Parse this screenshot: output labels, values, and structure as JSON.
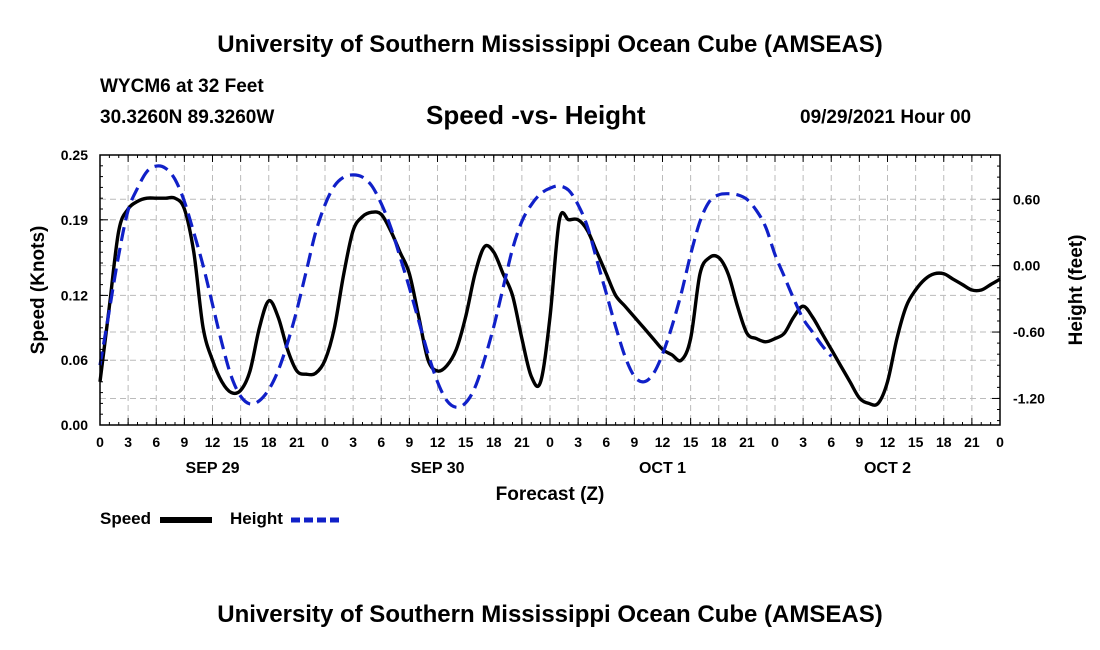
{
  "header": {
    "title": "University of Southern Mississippi Ocean Cube (AMSEAS)",
    "station": "WYCM6 at 32 Feet",
    "coords": "30.3260N  89.3260W",
    "subtitle": "Speed -vs- Height",
    "datetime": "09/29/2021 Hour 00"
  },
  "footer": {
    "title": "University of Southern Mississippi Ocean Cube (AMSEAS)"
  },
  "legend": {
    "speed_label": "Speed",
    "height_label": "Height"
  },
  "colors": {
    "speed": "#000000",
    "height": "#1020c8",
    "grid": "#bbbbbb"
  },
  "chart_data": {
    "type": "line",
    "xlabel": "Forecast (Z)",
    "ylabel": "Speed (Knots)",
    "y2label": "Height (feet)",
    "xlim": [
      0,
      96
    ],
    "ylim": [
      0,
      0.25
    ],
    "y2lim": [
      -1.44,
      1.0
    ],
    "yticks": [
      0.0,
      0.06,
      0.12,
      0.19,
      0.25
    ],
    "ytick_labels": [
      "0.00",
      "0.06",
      "0.12",
      "0.19",
      "0.25"
    ],
    "y2ticks": [
      -1.2,
      -0.6,
      0.0,
      0.6
    ],
    "y2tick_labels": [
      "-1.20",
      "-0.60",
      "0.00",
      "0.60"
    ],
    "xtick_labels": [
      "0",
      "3",
      "6",
      "9",
      "12",
      "15",
      "18",
      "21",
      "0",
      "3",
      "6",
      "9",
      "12",
      "15",
      "18",
      "21",
      "0",
      "3",
      "6",
      "9",
      "12",
      "15",
      "18",
      "21",
      "0",
      "3",
      "6",
      "9",
      "12",
      "15",
      "18",
      "21",
      "0"
    ],
    "day_labels": [
      {
        "hour": 12,
        "label": "SEP 29"
      },
      {
        "hour": 36,
        "label": "SEP 30"
      },
      {
        "hour": 60,
        "label": "OCT 1"
      },
      {
        "hour": 84,
        "label": "OCT 2"
      }
    ],
    "series": [
      {
        "name": "Speed",
        "axis": "left",
        "style": "solid",
        "points": [
          [
            0,
            0.04
          ],
          [
            1,
            0.11
          ],
          [
            2,
            0.18
          ],
          [
            3,
            0.2
          ],
          [
            4,
            0.207
          ],
          [
            5,
            0.21
          ],
          [
            6,
            0.21
          ],
          [
            7,
            0.21
          ],
          [
            8,
            0.21
          ],
          [
            9,
            0.2
          ],
          [
            10,
            0.16
          ],
          [
            11,
            0.09
          ],
          [
            12,
            0.06
          ],
          [
            13,
            0.04
          ],
          [
            14,
            0.03
          ],
          [
            15,
            0.032
          ],
          [
            16,
            0.05
          ],
          [
            17,
            0.09
          ],
          [
            18,
            0.115
          ],
          [
            19,
            0.1
          ],
          [
            20,
            0.07
          ],
          [
            21,
            0.05
          ],
          [
            22,
            0.047
          ],
          [
            23,
            0.048
          ],
          [
            24,
            0.06
          ],
          [
            25,
            0.09
          ],
          [
            26,
            0.14
          ],
          [
            27,
            0.18
          ],
          [
            28,
            0.193
          ],
          [
            29,
            0.197
          ],
          [
            30,
            0.195
          ],
          [
            31,
            0.18
          ],
          [
            32,
            0.16
          ],
          [
            33,
            0.14
          ],
          [
            34,
            0.1
          ],
          [
            35,
            0.06
          ],
          [
            36,
            0.05
          ],
          [
            37,
            0.055
          ],
          [
            38,
            0.07
          ],
          [
            39,
            0.1
          ],
          [
            40,
            0.14
          ],
          [
            41,
            0.165
          ],
          [
            42,
            0.16
          ],
          [
            43,
            0.14
          ],
          [
            44,
            0.12
          ],
          [
            45,
            0.08
          ],
          [
            46,
            0.045
          ],
          [
            47,
            0.04
          ],
          [
            48,
            0.1
          ],
          [
            49,
            0.19
          ],
          [
            50,
            0.19
          ],
          [
            51,
            0.19
          ],
          [
            52,
            0.18
          ],
          [
            53,
            0.16
          ],
          [
            54,
            0.14
          ],
          [
            55,
            0.12
          ],
          [
            56,
            0.11
          ],
          [
            57,
            0.1
          ],
          [
            58,
            0.09
          ],
          [
            59,
            0.08
          ],
          [
            60,
            0.07
          ],
          [
            61,
            0.065
          ],
          [
            62,
            0.06
          ],
          [
            63,
            0.08
          ],
          [
            64,
            0.14
          ],
          [
            65,
            0.155
          ],
          [
            66,
            0.155
          ],
          [
            67,
            0.14
          ],
          [
            68,
            0.11
          ],
          [
            69,
            0.085
          ],
          [
            70,
            0.08
          ],
          [
            71,
            0.077
          ],
          [
            72,
            0.08
          ],
          [
            73,
            0.085
          ],
          [
            74,
            0.1
          ],
          [
            75,
            0.11
          ],
          [
            76,
            0.1
          ],
          [
            77,
            0.085
          ],
          [
            78,
            0.07
          ],
          [
            79,
            0.055
          ],
          [
            80,
            0.04
          ],
          [
            81,
            0.025
          ],
          [
            82,
            0.02
          ],
          [
            83,
            0.02
          ],
          [
            84,
            0.04
          ],
          [
            85,
            0.08
          ],
          [
            86,
            0.11
          ],
          [
            87,
            0.125
          ],
          [
            88,
            0.135
          ],
          [
            89,
            0.14
          ],
          [
            90,
            0.14
          ],
          [
            91,
            0.135
          ],
          [
            92,
            0.13
          ],
          [
            93,
            0.125
          ],
          [
            94,
            0.125
          ],
          [
            95,
            0.13
          ],
          [
            96,
            0.135
          ]
        ]
      },
      {
        "name": "Height",
        "axis": "right",
        "style": "dashed",
        "points": [
          [
            0,
            -0.9
          ],
          [
            1,
            -0.4
          ],
          [
            2,
            0.1
          ],
          [
            3,
            0.5
          ],
          [
            4,
            0.7
          ],
          [
            5,
            0.85
          ],
          [
            6,
            0.9
          ],
          [
            7,
            0.88
          ],
          [
            8,
            0.78
          ],
          [
            9,
            0.58
          ],
          [
            10,
            0.3
          ],
          [
            11,
            0.0
          ],
          [
            12,
            -0.35
          ],
          [
            13,
            -0.7
          ],
          [
            14,
            -1.0
          ],
          [
            15,
            -1.18
          ],
          [
            16,
            -1.25
          ],
          [
            17,
            -1.22
          ],
          [
            18,
            -1.12
          ],
          [
            19,
            -0.95
          ],
          [
            20,
            -0.7
          ],
          [
            21,
            -0.4
          ],
          [
            22,
            -0.05
          ],
          [
            23,
            0.3
          ],
          [
            24,
            0.55
          ],
          [
            25,
            0.72
          ],
          [
            26,
            0.8
          ],
          [
            27,
            0.82
          ],
          [
            28,
            0.8
          ],
          [
            29,
            0.72
          ],
          [
            30,
            0.56
          ],
          [
            31,
            0.35
          ],
          [
            32,
            0.08
          ],
          [
            33,
            -0.2
          ],
          [
            34,
            -0.5
          ],
          [
            35,
            -0.8
          ],
          [
            36,
            -1.05
          ],
          [
            37,
            -1.22
          ],
          [
            38,
            -1.28
          ],
          [
            39,
            -1.24
          ],
          [
            40,
            -1.1
          ],
          [
            41,
            -0.85
          ],
          [
            42,
            -0.55
          ],
          [
            43,
            -0.2
          ],
          [
            44,
            0.15
          ],
          [
            45,
            0.4
          ],
          [
            46,
            0.55
          ],
          [
            47,
            0.65
          ],
          [
            48,
            0.7
          ],
          [
            49,
            0.72
          ],
          [
            50,
            0.68
          ],
          [
            51,
            0.55
          ],
          [
            52,
            0.35
          ],
          [
            53,
            0.05
          ],
          [
            54,
            -0.25
          ],
          [
            55,
            -0.55
          ],
          [
            56,
            -0.82
          ],
          [
            57,
            -1.0
          ],
          [
            58,
            -1.05
          ],
          [
            59,
            -0.98
          ],
          [
            60,
            -0.8
          ],
          [
            61,
            -0.55
          ],
          [
            62,
            -0.25
          ],
          [
            63,
            0.1
          ],
          [
            64,
            0.4
          ],
          [
            65,
            0.58
          ],
          [
            66,
            0.64
          ],
          [
            67,
            0.65
          ],
          [
            68,
            0.64
          ],
          [
            69,
            0.6
          ],
          [
            70,
            0.5
          ],
          [
            71,
            0.35
          ],
          [
            72,
            0.1
          ],
          [
            73,
            -0.1
          ],
          [
            74,
            -0.3
          ],
          [
            75,
            -0.48
          ],
          [
            76,
            -0.6
          ],
          [
            77,
            -0.72
          ],
          [
            78,
            -0.82
          ]
        ]
      }
    ]
  }
}
